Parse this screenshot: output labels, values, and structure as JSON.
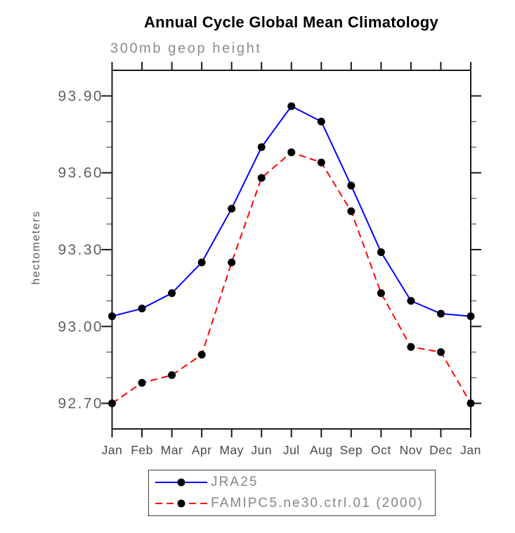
{
  "title": "Annual Cycle Global Mean Climatology",
  "subtitle": "300mb geop height",
  "chart_data": {
    "type": "line",
    "title": "Annual Cycle Global Mean Climatology",
    "subtitle": "300mb geop height",
    "xlabel": "",
    "ylabel": "hectometers",
    "x_categories": [
      "Jan",
      "Feb",
      "Mar",
      "Apr",
      "May",
      "Jun",
      "Jul",
      "Aug",
      "Sep",
      "Oct",
      "Nov",
      "Dec",
      "Jan"
    ],
    "ylim": [
      92.6,
      94.0
    ],
    "y_major_ticks": [
      93.9,
      93.6,
      93.3,
      93.0,
      92.7
    ],
    "y_major_tick_labels": [
      "93.90",
      "93.60",
      "93.30",
      "93.00",
      "92.70"
    ],
    "y_minor_ticks": [
      93.8,
      93.7,
      93.5,
      93.4,
      93.2,
      93.1,
      92.9,
      92.8
    ],
    "grid": false,
    "legend_position": "bottom",
    "marker_color": "#000000",
    "axis_color": "#1a1a1a",
    "tick_label_color": "#5f5f5f",
    "x_label_color": "#4a4a4a",
    "series": [
      {
        "name": "JRA25",
        "color": "#0000ff",
        "style": "solid",
        "values": [
          93.04,
          93.07,
          93.13,
          93.25,
          93.46,
          93.7,
          93.86,
          93.8,
          93.55,
          93.29,
          93.1,
          93.05,
          93.04
        ]
      },
      {
        "name": "FAMIPC5.ne30.ctrl.01 (2000)",
        "color": "#ff0000",
        "style": "dashed",
        "values": [
          92.7,
          92.78,
          92.81,
          92.89,
          93.25,
          93.58,
          93.68,
          93.64,
          93.45,
          93.13,
          92.92,
          92.9,
          92.7
        ]
      }
    ]
  }
}
